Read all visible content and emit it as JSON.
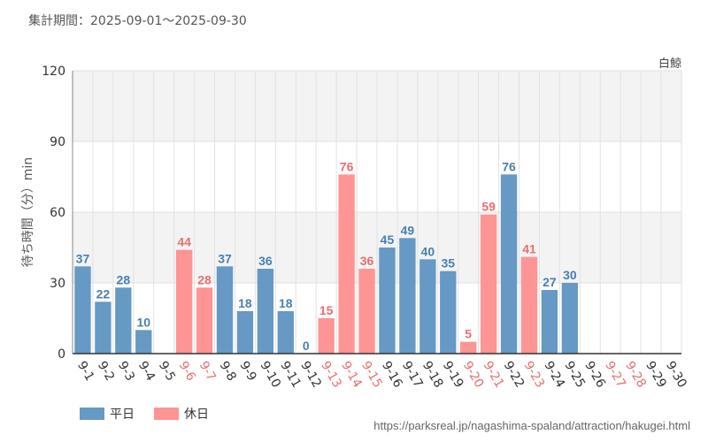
{
  "header": {
    "title": "集計期間：2025-09-01～2025-09-30",
    "attraction": "白鯨"
  },
  "legend": {
    "weekday_label": "平日",
    "holiday_label": "休日"
  },
  "footer": {
    "source": "https://parksreal.jp/nagashima-spaland/attraction/hakugei.html"
  },
  "colors": {
    "weekday_bar": "#6699c4",
    "holiday_bar": "#ff9494",
    "weekday_text": "#4a7fb0",
    "holiday_text": "#e86f6f",
    "band": "#f3f3f3",
    "grid": "#e2e2e2"
  },
  "chart_data": {
    "type": "bar",
    "ylabel": "待ち時間（分）min",
    "ylim": [
      0,
      120
    ],
    "yticks": [
      0,
      30,
      60,
      90,
      120
    ],
    "categories": [
      "9-1",
      "9-2",
      "9-3",
      "9-4",
      "9-5",
      "9-6",
      "9-7",
      "9-8",
      "9-9",
      "9-10",
      "9-11",
      "9-12",
      "9-13",
      "9-14",
      "9-15",
      "9-16",
      "9-17",
      "9-18",
      "9-19",
      "9-20",
      "9-21",
      "9-22",
      "9-23",
      "9-24",
      "9-25",
      "9-26",
      "9-27",
      "9-28",
      "9-29",
      "9-30"
    ],
    "values": [
      37,
      22,
      28,
      10,
      null,
      44,
      28,
      37,
      18,
      36,
      18,
      0,
      15,
      76,
      36,
      45,
      49,
      40,
      35,
      5,
      59,
      76,
      41,
      27,
      30,
      null,
      null,
      null,
      null,
      null
    ],
    "holiday": [
      false,
      false,
      false,
      false,
      false,
      true,
      true,
      false,
      false,
      false,
      false,
      false,
      true,
      true,
      true,
      false,
      false,
      false,
      false,
      true,
      true,
      false,
      true,
      false,
      false,
      false,
      true,
      true,
      false,
      false
    ],
    "series": [
      {
        "name": "平日",
        "kind": "weekday"
      },
      {
        "name": "休日",
        "kind": "holiday"
      }
    ],
    "grid": true,
    "legend_position": "bottom-left"
  }
}
